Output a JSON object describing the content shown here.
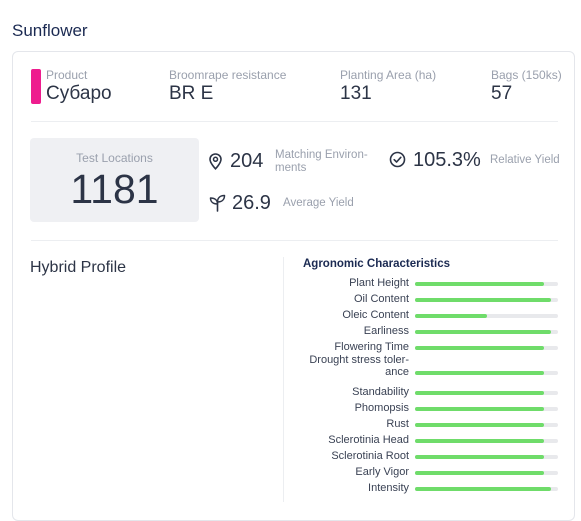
{
  "page": {
    "title": "Sunflower"
  },
  "header": {
    "accent_color": "#ee1c8e",
    "product": {
      "label": "Product",
      "value": "Субаро"
    },
    "broomrape": {
      "label": "Broomrape resistance",
      "value": "BR E"
    },
    "planting_area": {
      "label": "Planting Area (ha)",
      "value": "131"
    },
    "bags": {
      "label": "Bags (150ks)",
      "value": "57"
    }
  },
  "stats": {
    "test_locations": {
      "label": "Test Locations",
      "value": "1181"
    },
    "matching_environments": {
      "value": "204",
      "label_line1": "Matching Environ-",
      "label_line2": "ments",
      "icon": "location-pin-icon"
    },
    "relative_yield": {
      "value": "105.3%",
      "label": "Relative Yield",
      "icon": "check-circle-icon"
    },
    "average_yield": {
      "value": "26.9",
      "label": "Average Yield",
      "icon": "sprout-icon"
    }
  },
  "hybrid_profile": {
    "title": "Hybrid Profile"
  },
  "agronomic": {
    "title": "Agronomic Characteristics",
    "bar_color": "#6fdc6a",
    "track_color": "#e8e9ec",
    "traits": [
      {
        "label": "Plant Height",
        "value": 0.9
      },
      {
        "label": "Oil Content",
        "value": 0.95
      },
      {
        "label": "Oleic Content",
        "value": 0.5
      },
      {
        "label": "Earliness",
        "value": 0.95
      },
      {
        "label": "Flowering Time",
        "value": 0.9
      },
      {
        "label_line1": "Drought stress toler-",
        "label_line2": "ance",
        "value": 0.9
      },
      {
        "label": "Standability",
        "value": 0.9
      },
      {
        "label": "Phomopsis",
        "value": 0.9
      },
      {
        "label": "Rust",
        "value": 0.9
      },
      {
        "label": "Sclerotinia Head",
        "value": 0.9
      },
      {
        "label": "Sclerotinia Root",
        "value": 0.9
      },
      {
        "label": "Early Vigor",
        "value": 0.9
      },
      {
        "label": "Intensity",
        "value": 0.95
      }
    ]
  }
}
